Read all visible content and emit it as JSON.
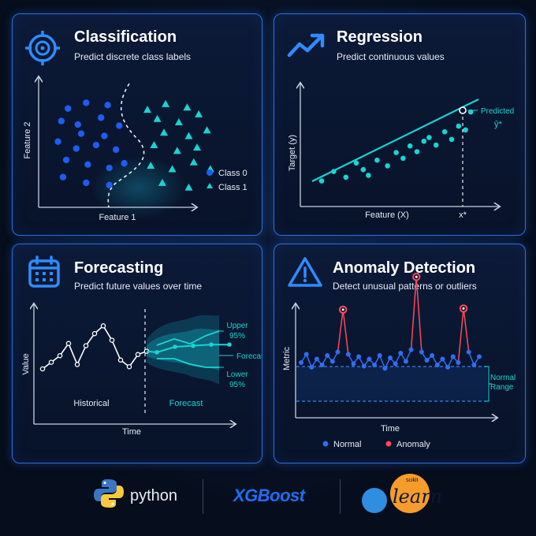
{
  "cards": {
    "classification": {
      "title": "Classification",
      "subtitle": "Predict discrete class labels",
      "xlabel": "Feature 1",
      "ylabel": "Feature 2",
      "legend": [
        "Class 0",
        "Class 1"
      ]
    },
    "regression": {
      "title": "Regression",
      "subtitle": "Predict continuous values",
      "xlabel": "Feature (X)",
      "ylabel": "Target (y)",
      "x_star": "x*",
      "predicted_label": "Predicted",
      "predicted_symbol": "ŷ*"
    },
    "forecasting": {
      "title": "Forecasting",
      "subtitle": "Predict future values over time",
      "xlabel": "Time",
      "ylabel": "Value",
      "historical": "Historical",
      "forecast_region": "Forecast",
      "forecast_line": "Forecast",
      "upper": [
        "Upper",
        "95%"
      ],
      "lower": [
        "Lower",
        "95%"
      ]
    },
    "anomaly": {
      "title": "Anomaly Detection",
      "subtitle": "Detect unusual patterns or outliers",
      "xlabel": "Time",
      "ylabel": "Metric",
      "normal_range": [
        "Normal",
        "Range"
      ],
      "legend": [
        "Normal",
        "Anomaly"
      ]
    }
  },
  "footer": {
    "python": "python",
    "xgboost": "XGBoost",
    "scikit": "scikit",
    "learn": "learn"
  },
  "colors": {
    "accent": "#2f8cff",
    "class0": "#1f5cf0",
    "class1": "#19d4d2",
    "anomaly": "#ff4a57",
    "background": "#060d1c"
  },
  "chart_data": [
    {
      "type": "scatter",
      "series": [
        {
          "name": "Class 0",
          "points": [
            [
              1.2,
              8.3
            ],
            [
              2.3,
              8.8
            ],
            [
              3.6,
              8.6
            ],
            [
              0.8,
              7.2
            ],
            [
              1.8,
              6.9
            ],
            [
              3.2,
              7.5
            ],
            [
              4.3,
              6.8
            ],
            [
              2.0,
              6.1
            ],
            [
              3.4,
              5.9
            ],
            [
              0.6,
              5.4
            ],
            [
              1.7,
              4.8
            ],
            [
              2.9,
              5.1
            ],
            [
              4.1,
              4.7
            ],
            [
              1.1,
              3.8
            ],
            [
              2.4,
              3.4
            ],
            [
              3.7,
              3.1
            ],
            [
              4.6,
              3.5
            ],
            [
              0.9,
              2.3
            ],
            [
              2.3,
              1.8
            ],
            [
              3.7,
              1.6
            ]
          ]
        },
        {
          "name": "Class 1",
          "points": [
            [
              6.0,
              8.2
            ],
            [
              7.1,
              8.7
            ],
            [
              8.4,
              8.4
            ],
            [
              6.6,
              7.4
            ],
            [
              7.9,
              7.1
            ],
            [
              9.1,
              7.8
            ],
            [
              7.0,
              6.2
            ],
            [
              8.5,
              5.9
            ],
            [
              9.6,
              6.4
            ],
            [
              6.4,
              5.1
            ],
            [
              7.8,
              4.6
            ],
            [
              9.0,
              4.9
            ],
            [
              6.2,
              3.3
            ],
            [
              7.5,
              3.0
            ],
            [
              8.8,
              3.6
            ],
            [
              9.8,
              3.0
            ],
            [
              6.9,
              1.8
            ],
            [
              8.5,
              1.4
            ]
          ]
        }
      ]
    },
    {
      "type": "scatter",
      "x": [
        1.0,
        1.7,
        2.4,
        3.0,
        3.4,
        3.7,
        4.2,
        4.8,
        5.3,
        5.7,
        6.1,
        6.5,
        6.9,
        7.2,
        7.6,
        8.1,
        8.5,
        8.9,
        9.3,
        9.6
      ],
      "y": [
        1.7,
        2.7,
        2.1,
        3.6,
        2.9,
        2.3,
        3.9,
        3.3,
        4.7,
        4.1,
        5.4,
        4.8,
        5.9,
        6.3,
        5.5,
        6.9,
        6.1,
        7.5,
        7.1,
        9.0
      ],
      "fit_line": [
        [
          0.5,
          1.8
        ],
        [
          10.0,
          8.3
        ]
      ],
      "predicted": {
        "x": 9.1,
        "y": 7.7
      }
    },
    {
      "type": "line",
      "historical": [
        3.0,
        3.6,
        4.2,
        5.3,
        3.4,
        5.1,
        6.2,
        6.9,
        5.6,
        3.8,
        3.2,
        4.3,
        4.6
      ],
      "forecast": [
        4.5,
        5.0,
        5.1,
        5.2,
        5.2
      ],
      "upper_95": [
        5.8,
        6.2,
        5.8,
        6.4,
        6.8
      ],
      "lower_95": [
        4.6,
        4.6,
        4.2,
        3.9,
        3.9
      ]
    },
    {
      "type": "line",
      "values": [
        4.7,
        5.4,
        4.3,
        5.0,
        4.5,
        5.3,
        4.8,
        5.6,
        9.2,
        5.4,
        4.6,
        5.2,
        4.4,
        5.0,
        4.5,
        5.3,
        4.2,
        5.1,
        4.6,
        5.5,
        4.8,
        5.8,
        12.0,
        5.6,
        4.9,
        5.3,
        4.5,
        5.0,
        4.3,
        5.2,
        4.7,
        9.3,
        5.6,
        4.5,
        5.2
      ],
      "anomalies": [
        8,
        22,
        31
      ],
      "normal_range": [
        4.0,
        6.2
      ]
    }
  ]
}
